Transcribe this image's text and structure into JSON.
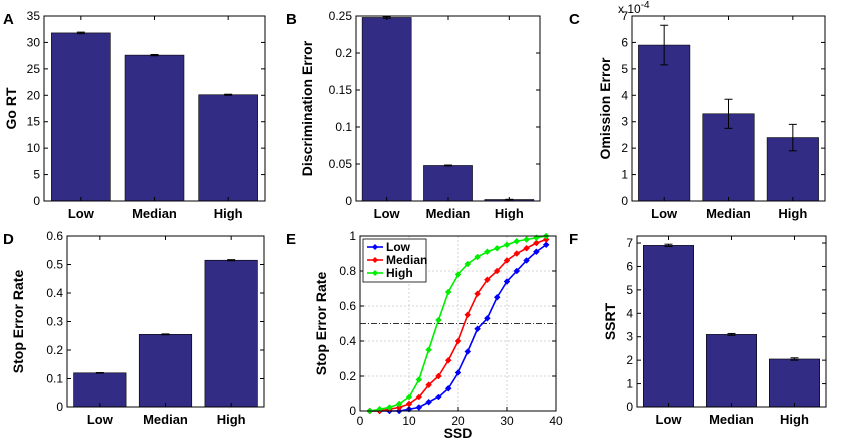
{
  "figure": {
    "bar_color": "#332c84",
    "error_color": "#000000"
  },
  "chart_data": [
    {
      "id": "A",
      "letter": "A",
      "type": "bar",
      "categories": [
        "Low",
        "Median",
        "High"
      ],
      "values": [
        31.8,
        27.6,
        20.1
      ],
      "errors": [
        0.15,
        0.12,
        0.1
      ],
      "ylabel": "Go RT",
      "xlabel": "",
      "ylim": [
        0,
        35
      ],
      "yticks": [
        0,
        5,
        10,
        15,
        20,
        25,
        30,
        35
      ],
      "ytick_labels": [
        "0",
        "5",
        "10",
        "15",
        "20",
        "25",
        "30",
        "35"
      ]
    },
    {
      "id": "B",
      "letter": "B",
      "type": "bar",
      "categories": [
        "Low",
        "Median",
        "High"
      ],
      "values": [
        0.248,
        0.048,
        0.002
      ],
      "errors": [
        0.001,
        0.0006,
        0.0003
      ],
      "ylabel": "Discrimination Error",
      "xlabel": "",
      "ylim": [
        0,
        0.25
      ],
      "yticks": [
        0,
        0.05,
        0.1,
        0.15,
        0.2,
        0.25
      ],
      "ytick_labels": [
        "0",
        "0.05",
        "0.1",
        "0.15",
        "0.2",
        "0.25"
      ]
    },
    {
      "id": "C",
      "letter": "C",
      "type": "bar",
      "categories": [
        "Low",
        "Median",
        "High"
      ],
      "values": [
        5.9,
        3.3,
        2.4
      ],
      "errors": [
        0.75,
        0.55,
        0.5
      ],
      "ylabel": "Omission Error",
      "xlabel": "",
      "ylim": [
        0,
        7
      ],
      "yticks": [
        0,
        1,
        2,
        3,
        4,
        5,
        6,
        7
      ],
      "ytick_labels": [
        "0",
        "1",
        "2",
        "3",
        "4",
        "5",
        "6",
        "7"
      ],
      "multiplier_base": "x 10",
      "multiplier_exp": "-4"
    },
    {
      "id": "D",
      "letter": "D",
      "type": "bar",
      "categories": [
        "Low",
        "Median",
        "High"
      ],
      "values": [
        0.12,
        0.255,
        0.515
      ],
      "errors": [
        0.001,
        0.0015,
        0.002
      ],
      "ylabel": "Stop Error Rate",
      "xlabel": "",
      "ylim": [
        0,
        0.6
      ],
      "yticks": [
        0,
        0.1,
        0.2,
        0.3,
        0.4,
        0.5,
        0.6
      ],
      "ytick_labels": [
        "0",
        "0.1",
        "0.2",
        "0.3",
        "0.4",
        "0.5",
        "0.6"
      ]
    },
    {
      "id": "E",
      "letter": "E",
      "type": "line",
      "x": [
        2,
        4,
        6,
        8,
        10,
        12,
        14,
        16,
        18,
        20,
        22,
        24,
        26,
        28,
        30,
        32,
        34,
        36,
        38
      ],
      "series": [
        {
          "name": "Low",
          "color": "#0000ff",
          "values": [
            0,
            0,
            0,
            0,
            0.01,
            0.02,
            0.05,
            0.08,
            0.13,
            0.22,
            0.34,
            0.47,
            0.53,
            0.65,
            0.74,
            0.8,
            0.86,
            0.91,
            0.95
          ]
        },
        {
          "name": "Median",
          "color": "#ff0000",
          "values": [
            0,
            0,
            0.01,
            0.02,
            0.04,
            0.08,
            0.15,
            0.2,
            0.29,
            0.4,
            0.55,
            0.67,
            0.75,
            0.8,
            0.86,
            0.9,
            0.93,
            0.96,
            0.98
          ]
        },
        {
          "name": "High",
          "color": "#00ee00",
          "values": [
            0,
            0.01,
            0.02,
            0.04,
            0.08,
            0.18,
            0.35,
            0.52,
            0.68,
            0.78,
            0.84,
            0.88,
            0.91,
            0.93,
            0.95,
            0.97,
            0.98,
            0.99,
            1.0
          ]
        }
      ],
      "reference_line": 0.5,
      "xlabel": "SSD",
      "ylabel": "Stop Error Rate",
      "xlim": [
        0,
        40
      ],
      "ylim": [
        0,
        1
      ],
      "xticks": [
        0,
        10,
        20,
        30,
        40
      ],
      "xtick_labels": [
        "0",
        "10",
        "20",
        "30",
        "40"
      ],
      "yticks": [
        0,
        0.2,
        0.4,
        0.6,
        0.8,
        1
      ],
      "ytick_labels": [
        "0",
        "0.2",
        "0.4",
        "0.6",
        "0.8",
        "1"
      ],
      "grid": true,
      "legend_position": "top-left"
    },
    {
      "id": "F",
      "letter": "F",
      "type": "bar",
      "categories": [
        "Low",
        "Median",
        "High"
      ],
      "values": [
        6.9,
        3.1,
        2.05
      ],
      "errors": [
        0.05,
        0.04,
        0.05
      ],
      "ylabel": "SSRT",
      "xlabel": "",
      "ylim": [
        0,
        7.3
      ],
      "yticks": [
        0,
        1,
        2,
        3,
        4,
        5,
        6,
        7
      ],
      "ytick_labels": [
        "0",
        "1",
        "2",
        "3",
        "4",
        "5",
        "6",
        "7"
      ]
    }
  ]
}
